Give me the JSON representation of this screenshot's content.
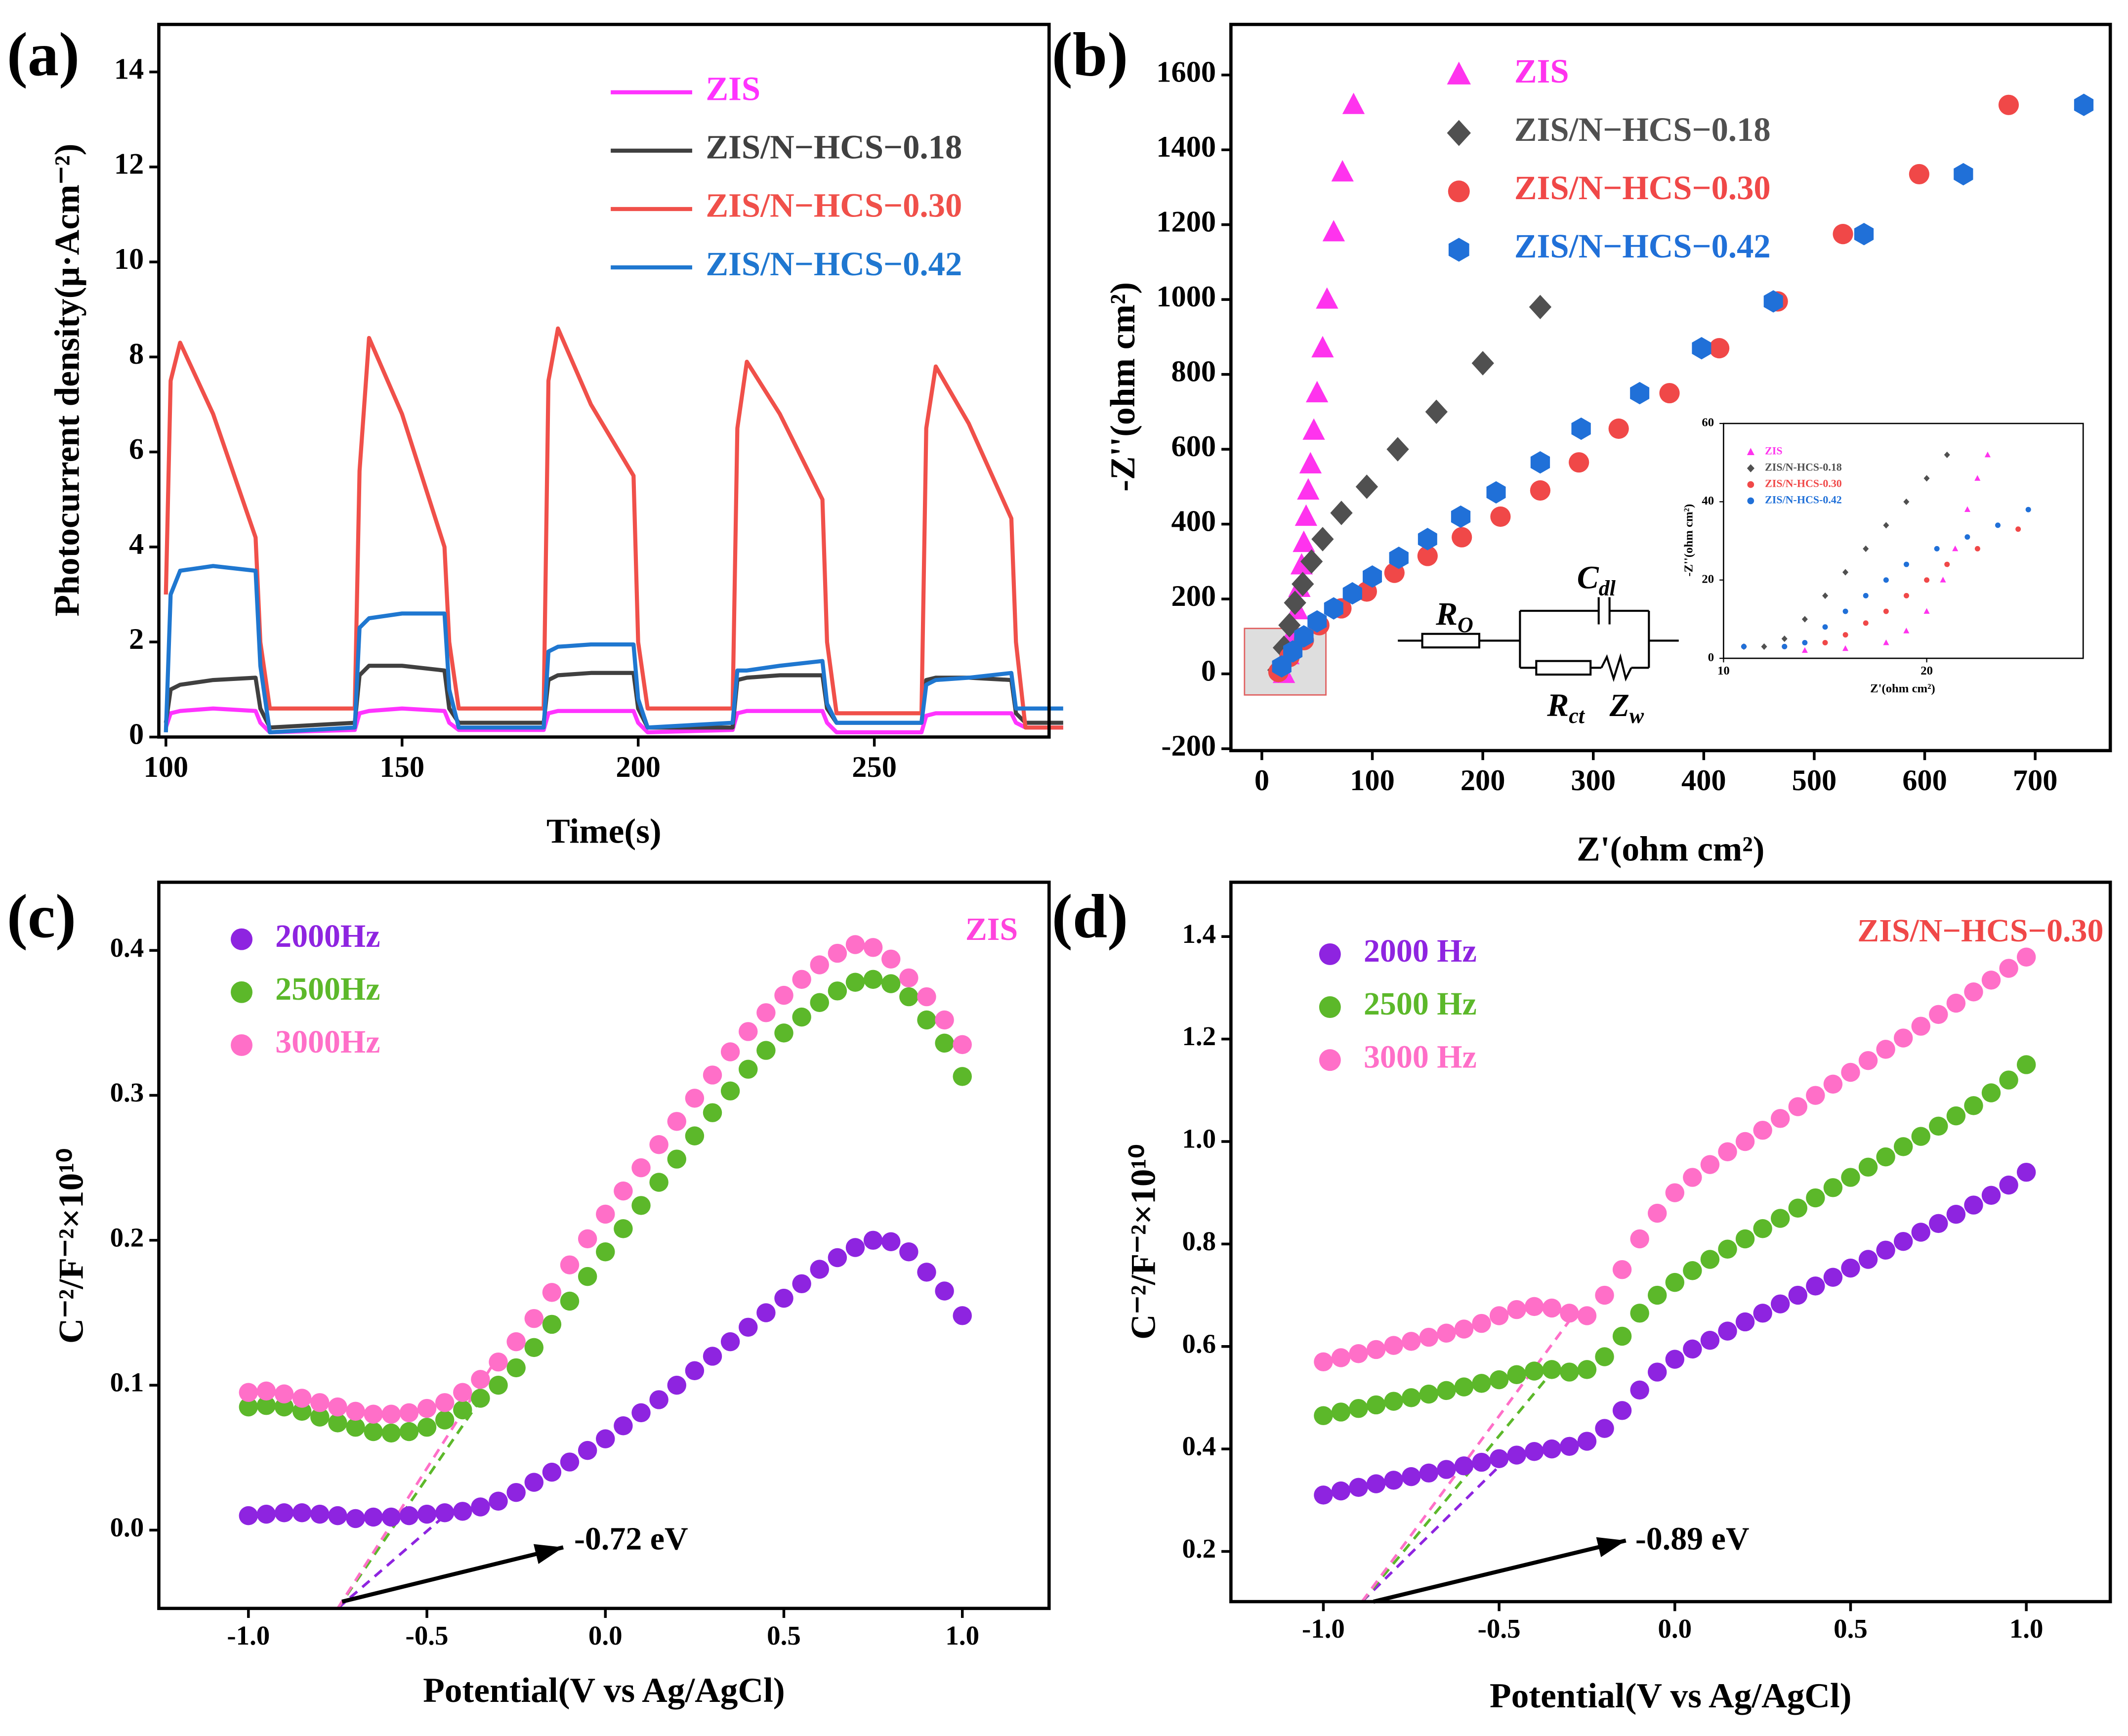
{
  "chart_data": [
    {
      "type": "line",
      "panel_label": "(a)",
      "xlabel": "Time(s)",
      "ylabel": "Photocurrent density(μ·Acm⁻²)",
      "xlim": [
        98.5,
        287
      ],
      "ylim": [
        0,
        15
      ],
      "xticks": [
        100,
        150,
        200,
        250
      ],
      "yticks": [
        0,
        2,
        4,
        6,
        8,
        10,
        12,
        14
      ],
      "x": [
        100,
        101,
        103,
        110,
        119,
        120,
        122,
        140,
        141,
        143,
        150,
        159,
        160,
        162,
        180,
        181,
        183,
        190,
        199,
        200,
        202,
        220,
        221,
        223,
        230,
        239,
        240,
        242,
        260,
        261,
        263,
        270,
        279,
        280,
        282,
        290
      ],
      "series": [
        {
          "name": "ZIS",
          "color": "#ff33ff",
          "values": [
            0.2,
            0.5,
            0.55,
            0.6,
            0.55,
            0.3,
            0.1,
            0.15,
            0.5,
            0.55,
            0.6,
            0.55,
            0.3,
            0.15,
            0.15,
            0.5,
            0.55,
            0.55,
            0.55,
            0.3,
            0.1,
            0.15,
            0.5,
            0.55,
            0.55,
            0.55,
            0.3,
            0.1,
            0.1,
            0.45,
            0.5,
            0.5,
            0.5,
            0.3,
            0.2,
            0.2
          ]
        },
        {
          "name": "ZIS/N−HCS−0.18",
          "color": "#404040",
          "values": [
            0.3,
            1.0,
            1.1,
            1.2,
            1.25,
            0.6,
            0.2,
            0.3,
            1.3,
            1.5,
            1.5,
            1.4,
            0.6,
            0.3,
            0.3,
            1.2,
            1.3,
            1.35,
            1.35,
            0.6,
            0.2,
            0.2,
            1.2,
            1.25,
            1.3,
            1.3,
            0.6,
            0.3,
            0.3,
            1.2,
            1.25,
            1.25,
            1.2,
            0.5,
            0.3,
            0.3
          ]
        },
        {
          "name": "ZIS/N−HCS−0.30",
          "color": "#f0504a",
          "values": [
            3.0,
            7.5,
            8.3,
            6.8,
            4.2,
            2.0,
            0.6,
            0.6,
            5.6,
            8.4,
            6.8,
            4.0,
            2.0,
            0.6,
            0.6,
            7.5,
            8.6,
            7.0,
            5.5,
            2.0,
            0.6,
            0.6,
            6.5,
            7.9,
            6.8,
            5.0,
            2.0,
            0.5,
            0.5,
            6.5,
            7.8,
            6.6,
            4.6,
            2.0,
            0.2,
            0.2
          ]
        },
        {
          "name": "ZIS/N−HCS−0.42",
          "color": "#1f77d0",
          "values": [
            0.1,
            3.0,
            3.5,
            3.6,
            3.5,
            1.5,
            0.1,
            0.2,
            2.3,
            2.5,
            2.6,
            2.6,
            1.0,
            0.2,
            0.2,
            1.8,
            1.9,
            1.95,
            1.95,
            0.8,
            0.2,
            0.3,
            1.4,
            1.4,
            1.5,
            1.6,
            0.7,
            0.3,
            0.3,
            1.1,
            1.2,
            1.25,
            1.35,
            0.6,
            0.6,
            0.6
          ]
        }
      ]
    },
    {
      "type": "scatter",
      "panel_label": "(b)",
      "xlabel": "Z'(ohm cm²)",
      "ylabel": "-Z''(ohm cm²)",
      "xlim": [
        -28,
        768
      ],
      "ylim": [
        -205,
        1735
      ],
      "xticks": [
        0,
        100,
        200,
        300,
        400,
        500,
        600,
        700
      ],
      "yticks": [
        -200,
        0,
        200,
        400,
        600,
        800,
        1000,
        1200,
        1400,
        1600
      ],
      "circuit": [
        {
          "name": "R",
          "sub": "O"
        },
        {
          "name": "C",
          "sub": "dl"
        },
        {
          "name": "R",
          "sub": "ct"
        },
        {
          "name": "Z",
          "sub": "w"
        }
      ],
      "series": [
        {
          "name": "ZIS",
          "color": "#ff33ee",
          "marker": "triangle",
          "x": [
            20,
            24,
            28,
            32,
            34,
            36,
            38,
            40,
            42,
            44,
            47,
            50,
            55,
            59,
            65,
            73,
            83
          ],
          "values": [
            0,
            50,
            110,
            170,
            230,
            290,
            350,
            420,
            490,
            560,
            650,
            750,
            870,
            1000,
            1180,
            1340,
            1520
          ]
        },
        {
          "name": "ZIS/N−HCS−0.18",
          "color": "#505050",
          "marker": "diamond",
          "x": [
            15,
            20,
            25,
            30,
            37,
            45,
            55,
            72,
            95,
            123,
            158,
            200,
            252
          ],
          "values": [
            10,
            70,
            130,
            190,
            240,
            300,
            360,
            430,
            500,
            600,
            700,
            830,
            980
          ]
        },
        {
          "name": "ZIS/N−HCS−0.30",
          "color": "#f04848",
          "marker": "circle",
          "x": [
            15,
            25,
            38,
            52,
            72,
            95,
            120,
            150,
            181,
            216,
            252,
            287,
            323,
            369,
            414,
            467,
            526,
            595,
            676
          ],
          "values": [
            5,
            45,
            90,
            130,
            175,
            220,
            270,
            315,
            365,
            420,
            490,
            565,
            655,
            750,
            870,
            995,
            1175,
            1335,
            1520
          ]
        },
        {
          "name": "ZIS/N−HCS−0.42",
          "color": "#2070d8",
          "marker": "hexagon",
          "x": [
            18,
            28,
            38,
            50,
            65,
            82,
            100,
            124,
            150,
            180,
            212,
            252,
            289,
            342,
            398,
            463,
            545,
            635,
            744
          ],
          "values": [
            20,
            60,
            100,
            140,
            175,
            215,
            260,
            310,
            360,
            420,
            485,
            565,
            655,
            750,
            870,
            995,
            1175,
            1335,
            1520
          ]
        }
      ]
    },
    {
      "type": "scatter",
      "panel_label": "(c)",
      "xlabel": "Potential(V vs Ag/AgCl)",
      "ylabel": "C⁻²/F⁻²×10¹⁰",
      "label": "ZIS",
      "label_color": "#ff44dd",
      "annotation": "-0.72 eV",
      "xlim": [
        -1.251,
        1.243
      ],
      "ylim": [
        -0.054,
        0.447
      ],
      "xticks": [
        {
          "value": -1,
          "label": "-1.0"
        },
        -0.5,
        {
          "value": 0,
          "label": "0.0"
        },
        0.5,
        {
          "value": 1,
          "label": "1.0"
        }
      ],
      "yticks": [
        {
          "value": 0,
          "label": "0.0"
        },
        0.1,
        0.2,
        0.3,
        0.4
      ],
      "x": [
        -1,
        -0.95,
        -0.9,
        -0.85,
        -0.8,
        -0.75,
        -0.7,
        -0.65,
        -0.6,
        -0.55,
        -0.5,
        -0.45,
        -0.4,
        -0.35,
        -0.3,
        -0.25,
        -0.2,
        -0.15,
        -0.1,
        -0.05,
        0,
        0.05,
        0.1,
        0.15,
        0.2,
        0.25,
        0.3,
        0.35,
        0.4,
        0.45,
        0.5,
        0.55,
        0.6,
        0.65,
        0.7,
        0.75,
        0.8,
        0.85,
        0.9,
        0.95,
        1
      ],
      "series": [
        {
          "name": "2000Hz",
          "color": "#8e24e0",
          "marker": "circle",
          "values": [
            0.01,
            0.011,
            0.012,
            0.012,
            0.011,
            0.01,
            0.008,
            0.009,
            0.009,
            0.01,
            0.011,
            0.012,
            0.013,
            0.016,
            0.02,
            0.026,
            0.033,
            0.04,
            0.047,
            0.055,
            0.063,
            0.072,
            0.081,
            0.09,
            0.1,
            0.11,
            0.12,
            0.13,
            0.14,
            0.15,
            0.16,
            0.17,
            0.18,
            0.188,
            0.195,
            0.2,
            0.199,
            0.192,
            0.178,
            0.165,
            0.148
          ]
        },
        {
          "name": "2500Hz",
          "color": "#5cb82a",
          "marker": "circle",
          "values": [
            0.085,
            0.086,
            0.085,
            0.082,
            0.078,
            0.074,
            0.071,
            0.068,
            0.067,
            0.068,
            0.071,
            0.076,
            0.083,
            0.091,
            0.1,
            0.112,
            0.126,
            0.142,
            0.158,
            0.175,
            0.192,
            0.208,
            0.224,
            0.24,
            0.256,
            0.272,
            0.288,
            0.303,
            0.318,
            0.331,
            0.343,
            0.354,
            0.364,
            0.372,
            0.378,
            0.38,
            0.377,
            0.368,
            0.352,
            0.336,
            0.313
          ]
        },
        {
          "name": "3000Hz",
          "color": "#ff6fc8",
          "marker": "circle",
          "values": [
            0.095,
            0.096,
            0.094,
            0.091,
            0.088,
            0.085,
            0.082,
            0.08,
            0.08,
            0.081,
            0.084,
            0.088,
            0.095,
            0.104,
            0.116,
            0.13,
            0.146,
            0.164,
            0.183,
            0.201,
            0.218,
            0.234,
            0.25,
            0.266,
            0.282,
            0.298,
            0.314,
            0.33,
            0.344,
            0.357,
            0.369,
            0.38,
            0.39,
            0.398,
            0.404,
            0.402,
            0.394,
            0.381,
            0.368,
            0.352,
            0.335
          ]
        }
      ],
      "tangents": [
        {
          "x": [
            -0.75,
            -0.45
          ],
          "values": [
            -0.054,
            0.01
          ]
        },
        {
          "x": [
            -0.75,
            -0.35
          ],
          "values": [
            -0.054,
            0.09
          ]
        },
        {
          "x": [
            -0.75,
            -0.3
          ],
          "values": [
            -0.054,
            0.12
          ]
        }
      ]
    },
    {
      "type": "scatter",
      "panel_label": "(d)",
      "xlabel": "Potential(V vs Ag/AgCl)",
      "ylabel": "C⁻²/F⁻²×10¹⁰",
      "label": "ZIS/N−HCS−0.30",
      "label_color": "#f04848",
      "annotation": "-0.89 eV",
      "xlim": [
        -1.263,
        1.239
      ],
      "ylim": [
        0.102,
        1.506
      ],
      "xticks": [
        {
          "value": -1,
          "label": "-1.0"
        },
        -0.5,
        {
          "value": 0,
          "label": "0.0"
        },
        0.5,
        {
          "value": 1,
          "label": "1.0"
        }
      ],
      "yticks": [
        0.2,
        0.4,
        0.6,
        0.8,
        {
          "value": 1,
          "label": "1.0"
        },
        1.2,
        1.4
      ],
      "x": [
        -1,
        -0.95,
        -0.9,
        -0.85,
        -0.8,
        -0.75,
        -0.7,
        -0.65,
        -0.6,
        -0.55,
        -0.5,
        -0.45,
        -0.4,
        -0.35,
        -0.3,
        -0.25,
        -0.2,
        -0.15,
        -0.1,
        -0.05,
        0,
        0.05,
        0.1,
        0.15,
        0.2,
        0.25,
        0.3,
        0.35,
        0.4,
        0.45,
        0.5,
        0.55,
        0.6,
        0.65,
        0.7,
        0.75,
        0.8,
        0.85,
        0.9,
        0.95,
        1
      ],
      "series": [
        {
          "name": "2000 Hz",
          "color": "#8e24e0",
          "marker": "circle",
          "values": [
            0.31,
            0.318,
            0.325,
            0.332,
            0.339,
            0.346,
            0.353,
            0.36,
            0.367,
            0.374,
            0.381,
            0.388,
            0.395,
            0.4,
            0.405,
            0.415,
            0.44,
            0.475,
            0.515,
            0.55,
            0.575,
            0.595,
            0.612,
            0.63,
            0.648,
            0.665,
            0.683,
            0.7,
            0.718,
            0.735,
            0.753,
            0.77,
            0.788,
            0.805,
            0.823,
            0.84,
            0.858,
            0.876,
            0.895,
            0.915,
            0.94
          ]
        },
        {
          "name": "2500 Hz",
          "color": "#5cb82a",
          "marker": "circle",
          "values": [
            0.465,
            0.472,
            0.479,
            0.486,
            0.493,
            0.5,
            0.507,
            0.514,
            0.521,
            0.528,
            0.535,
            0.545,
            0.552,
            0.555,
            0.55,
            0.555,
            0.58,
            0.62,
            0.665,
            0.7,
            0.725,
            0.748,
            0.77,
            0.79,
            0.81,
            0.83,
            0.85,
            0.87,
            0.89,
            0.91,
            0.93,
            0.95,
            0.97,
            0.99,
            1.01,
            1.03,
            1.05,
            1.07,
            1.095,
            1.12,
            1.15
          ]
        },
        {
          "name": "3000 Hz",
          "color": "#ff6fc8",
          "marker": "circle",
          "values": [
            0.57,
            0.578,
            0.586,
            0.594,
            0.602,
            0.61,
            0.618,
            0.626,
            0.634,
            0.645,
            0.66,
            0.672,
            0.678,
            0.675,
            0.665,
            0.66,
            0.7,
            0.75,
            0.81,
            0.86,
            0.9,
            0.93,
            0.955,
            0.98,
            1.0,
            1.022,
            1.045,
            1.068,
            1.09,
            1.112,
            1.135,
            1.158,
            1.18,
            1.202,
            1.225,
            1.248,
            1.27,
            1.292,
            1.315,
            1.338,
            1.36
          ]
        }
      ],
      "tangents": [
        {
          "x": [
            -0.89,
            -0.45
          ],
          "values": [
            0.102,
            0.4
          ]
        },
        {
          "x": [
            -0.89,
            -0.35
          ],
          "values": [
            0.102,
            0.55
          ]
        },
        {
          "x": [
            -0.89,
            -0.3
          ],
          "values": [
            0.102,
            0.65
          ]
        }
      ]
    },
    {
      "type": "scatter",
      "xlabel": "Z'(ohm cm²)",
      "ylabel": "-Z''(ohm cm²)",
      "xlim": [
        10,
        27.7
      ],
      "ylim": [
        0,
        60
      ],
      "xticks": [
        10,
        20
      ],
      "yticks": [
        0,
        20,
        40,
        60
      ],
      "series": [
        {
          "name": "ZIS",
          "color": "#ff33ee",
          "marker": "triangle",
          "x": [
            14,
            16,
            18,
            19,
            20,
            20.8,
            21.4,
            22,
            22.5,
            23
          ],
          "values": [
            2,
            2.5,
            4,
            7,
            12,
            20,
            28,
            38,
            46,
            52
          ]
        },
        {
          "name": "ZIS/N-HCS-0.18",
          "color": "#505050",
          "marker": "diamond",
          "x": [
            11,
            12,
            13,
            14,
            15,
            16,
            17,
            18,
            19,
            20,
            21
          ],
          "values": [
            3,
            3,
            5,
            10,
            16,
            22,
            28,
            34,
            40,
            46,
            52
          ]
        },
        {
          "name": "ZIS/N-HCS-0.30",
          "color": "#f04848",
          "marker": "circle",
          "x": [
            11,
            13,
            15,
            16,
            17,
            18,
            19,
            20,
            21,
            22.5,
            24.5
          ],
          "values": [
            3,
            3,
            4,
            6,
            9,
            12,
            16,
            20,
            24,
            28,
            33
          ]
        },
        {
          "name": "ZIS/N-HCS-0.42",
          "color": "#2070d8",
          "marker": "circle",
          "x": [
            11,
            13,
            14,
            15,
            16,
            17,
            18,
            19,
            20.5,
            22,
            23.5,
            25
          ],
          "values": [
            3,
            3,
            4,
            8,
            12,
            16,
            20,
            24,
            28,
            31,
            34,
            38
          ]
        }
      ]
    }
  ]
}
